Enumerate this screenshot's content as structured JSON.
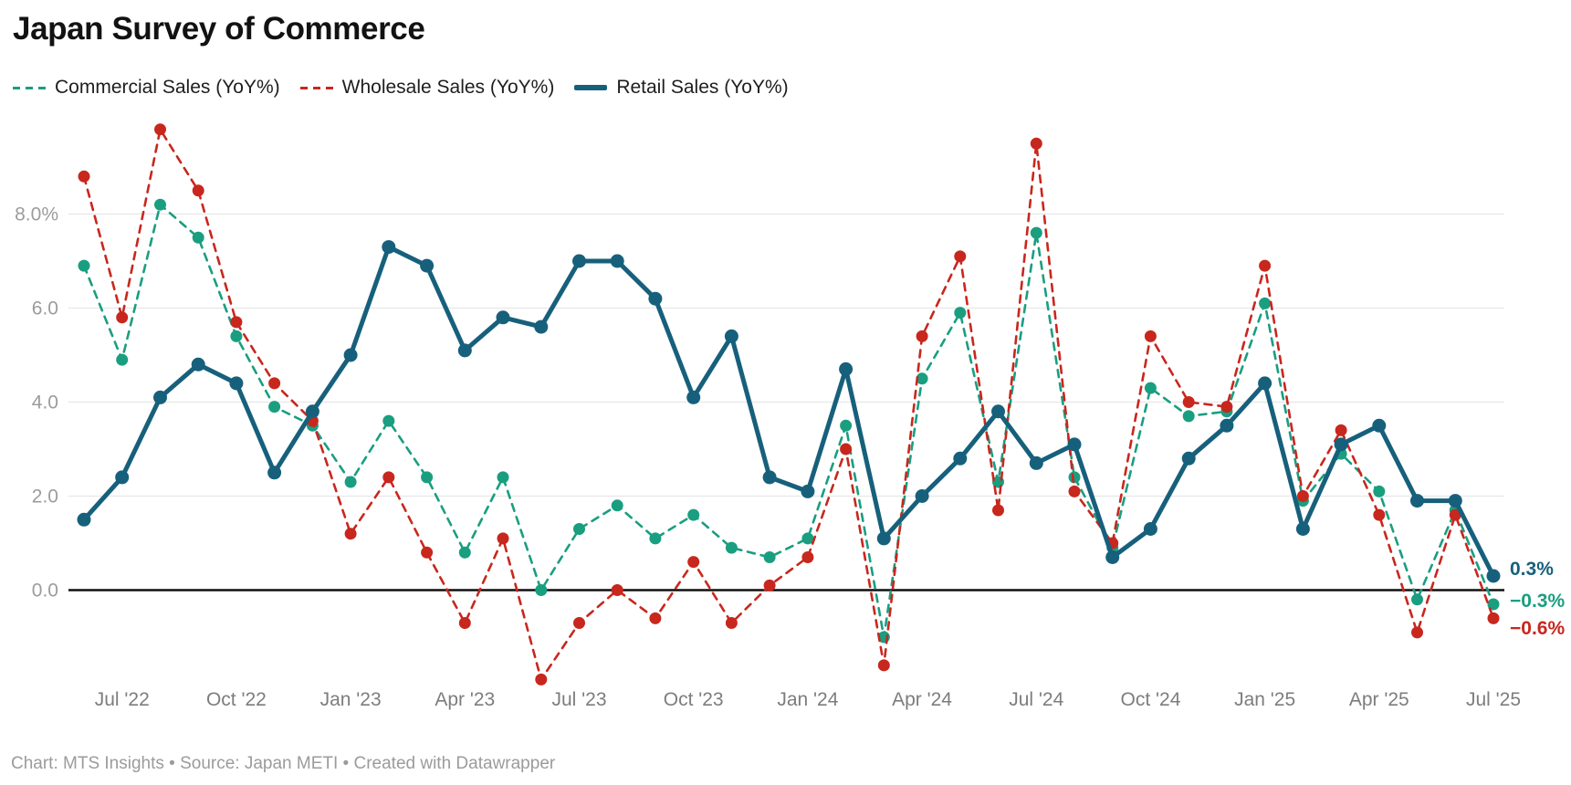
{
  "title": "Japan Survey of Commerce",
  "footer": "Chart: MTS Insights • Source: Japan METI • Created with Datawrapper",
  "legend": {
    "items": [
      {
        "label": "Commercial Sales (YoY%)",
        "color": "#1a9e80",
        "style": "dashed"
      },
      {
        "label": "Wholesale Sales (YoY%)",
        "color": "#c8271e",
        "style": "dashed"
      },
      {
        "label": "Retail Sales (YoY%)",
        "color": "#17607c",
        "style": "solid"
      }
    ]
  },
  "chart_data": {
    "type": "line",
    "title": "Japan Survey of Commerce",
    "xlabel": "",
    "ylabel": "",
    "grid": true,
    "legend_position": "top-left",
    "ylim": [
      -2.6,
      10.2
    ],
    "x": [
      "Jun '22",
      "Jul '22",
      "Aug '22",
      "Sep '22",
      "Oct '22",
      "Nov '22",
      "Dec '22",
      "Jan '23",
      "Feb '23",
      "Mar '23",
      "Apr '23",
      "May '23",
      "Jun '23",
      "Jul '23",
      "Aug '23",
      "Sep '23",
      "Oct '23",
      "Nov '23",
      "Dec '23",
      "Jan '24",
      "Feb '24",
      "Mar '24",
      "Apr '24",
      "May '24",
      "Jun '24",
      "Jul '24",
      "Aug '24",
      "Sep '24",
      "Oct '24",
      "Nov '24",
      "Dec '24",
      "Jan '25",
      "Feb '25",
      "Mar '25",
      "Apr '25",
      "May '25",
      "Jun '25",
      "Jul '25"
    ],
    "x_tick_indices": [
      1,
      4,
      7,
      10,
      13,
      16,
      19,
      22,
      25,
      28,
      31,
      34,
      37
    ],
    "x_tick_labels": [
      "Jul '22",
      "Oct '22",
      "Jan '23",
      "Apr '23",
      "Jul '23",
      "Oct '23",
      "Jan '24",
      "Apr '24",
      "Jul '24",
      "Oct '24",
      "Jan '25",
      "Apr '25",
      "Jul '25"
    ],
    "y_ticks": [
      {
        "value": 8,
        "label": "8.0%"
      },
      {
        "value": 6,
        "label": "6.0"
      },
      {
        "value": 4,
        "label": "4.0"
      },
      {
        "value": 2,
        "label": "2.0"
      },
      {
        "value": 0,
        "label": "0.0"
      }
    ],
    "zero_line_color": "#111111",
    "grid_color": "#e7e7e7",
    "series": [
      {
        "name": "Commercial Sales (YoY%)",
        "color": "#1a9e80",
        "dashed": true,
        "values": [
          6.9,
          4.9,
          8.2,
          7.5,
          5.4,
          3.9,
          3.5,
          2.3,
          3.6,
          2.4,
          0.8,
          2.4,
          0.0,
          1.3,
          1.8,
          1.1,
          1.6,
          0.9,
          0.7,
          1.1,
          3.5,
          -1.0,
          4.5,
          5.9,
          2.3,
          7.6,
          2.4,
          0.9,
          4.3,
          3.7,
          3.8,
          6.1,
          1.9,
          2.9,
          2.1,
          -0.2,
          1.7,
          -0.3
        ]
      },
      {
        "name": "Wholesale Sales (YoY%)",
        "color": "#c8271e",
        "dashed": true,
        "values": [
          8.8,
          5.8,
          9.8,
          8.5,
          5.7,
          4.4,
          3.6,
          1.2,
          2.4,
          0.8,
          -0.7,
          1.1,
          -1.9,
          -0.7,
          0.0,
          -0.6,
          0.6,
          -0.7,
          0.1,
          0.7,
          3.0,
          -1.6,
          5.4,
          7.1,
          1.7,
          9.5,
          2.1,
          1.0,
          5.4,
          4.0,
          3.9,
          6.9,
          2.0,
          3.4,
          1.6,
          -0.9,
          1.6,
          -0.6
        ]
      },
      {
        "name": "Retail Sales (YoY%)",
        "color": "#17607c",
        "dashed": false,
        "values": [
          1.5,
          2.4,
          4.1,
          4.8,
          4.4,
          2.5,
          3.8,
          5.0,
          7.3,
          6.9,
          5.1,
          5.8,
          5.6,
          7.0,
          7.0,
          6.2,
          4.1,
          5.4,
          2.4,
          2.1,
          4.7,
          1.1,
          2.0,
          2.8,
          3.8,
          2.7,
          3.1,
          0.7,
          1.3,
          2.8,
          3.5,
          4.4,
          1.3,
          3.1,
          3.5,
          1.9,
          1.9,
          0.3
        ]
      }
    ],
    "end_labels": [
      {
        "text": "0.3%",
        "color": "#17607c",
        "series": "Retail Sales (YoY%)"
      },
      {
        "text": "−0.3%",
        "color": "#1a9e80",
        "series": "Commercial Sales (YoY%)"
      },
      {
        "text": "−0.6%",
        "color": "#c8271e",
        "series": "Wholesale Sales (YoY%)"
      }
    ]
  }
}
